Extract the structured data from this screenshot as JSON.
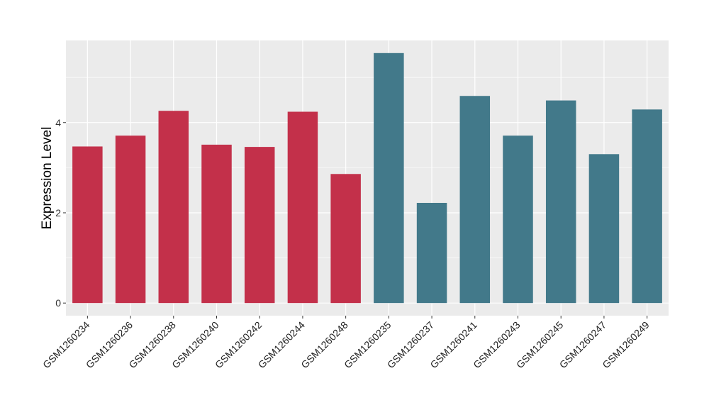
{
  "chart_data": {
    "type": "bar",
    "title": "",
    "xlabel": "",
    "ylabel": "Expression Level",
    "ylim": [
      -0.28,
      5.82
    ],
    "yticks": [
      0,
      2,
      4
    ],
    "grid": true,
    "categories": [
      "GSM1260234",
      "GSM1260236",
      "GSM1260238",
      "GSM1260240",
      "GSM1260242",
      "GSM1260244",
      "GSM1260248",
      "GSM1260235",
      "GSM1260237",
      "GSM1260241",
      "GSM1260243",
      "GSM1260245",
      "GSM1260247",
      "GSM1260249"
    ],
    "values": [
      3.47,
      3.71,
      4.26,
      3.51,
      3.46,
      4.24,
      2.86,
      5.54,
      2.22,
      4.59,
      3.71,
      4.49,
      3.3,
      4.29
    ],
    "groups": [
      0,
      0,
      0,
      0,
      0,
      0,
      0,
      1,
      1,
      1,
      1,
      1,
      1,
      1
    ],
    "colors": [
      "#C3304A",
      "#42798A"
    ]
  }
}
